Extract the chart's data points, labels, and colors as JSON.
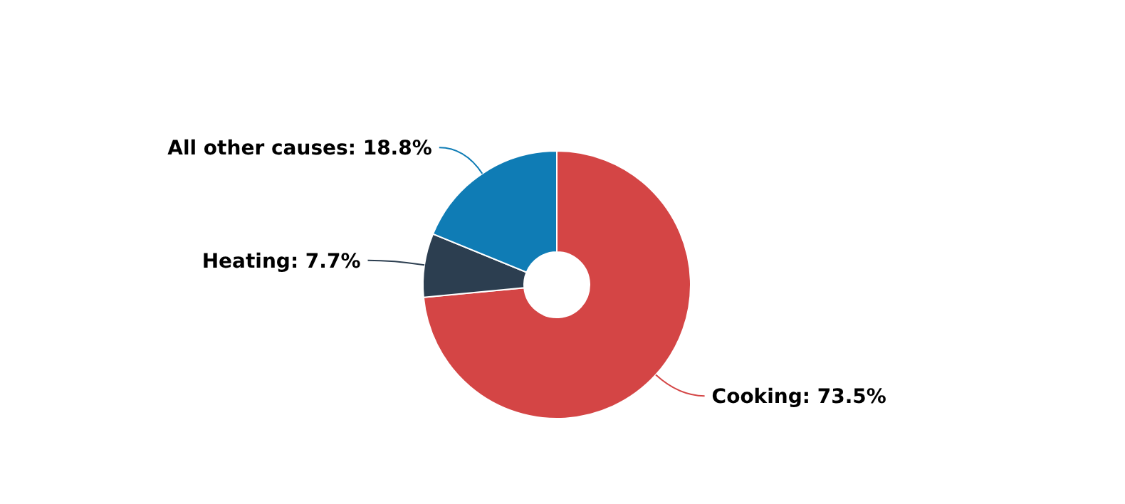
{
  "chart_data": {
    "type": "donut",
    "categories": [
      "Cooking",
      "Heating",
      "All other causes"
    ],
    "values": [
      73.5,
      7.7,
      18.8
    ],
    "colors": [
      "#d44545",
      "#2c3e50",
      "#0f7cb5"
    ],
    "value_labels": [
      "73.5%",
      "7.7%",
      "18.8%"
    ]
  }
}
